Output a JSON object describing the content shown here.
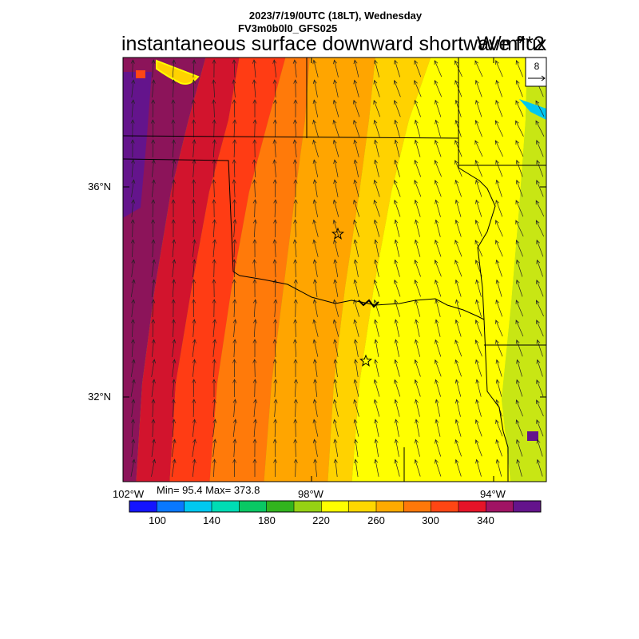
{
  "header": {
    "date_line": "2023/7/19/0UTC (18LT), Wednesday",
    "model_line": "FV3m0b0l0_GFS025",
    "title": "instantaneous surface downward shortwave flux",
    "units": "W/m**2"
  },
  "map": {
    "lat_labels": [
      "36°N",
      "32°N"
    ],
    "lon_labels": [
      "102°W",
      "98°W",
      "94°W"
    ],
    "vector_reference": "8",
    "stations": [
      "star-station",
      "star-station"
    ]
  },
  "stats": {
    "text": "Min= 95.4 Max= 373.8"
  },
  "colorbar": {
    "colors": [
      "#1414ff",
      "#0a78ff",
      "#00c8f0",
      "#00dcb4",
      "#0ac864",
      "#32b41e",
      "#96d214",
      "#ffff00",
      "#ffd700",
      "#ffaa00",
      "#ff780a",
      "#ff4614",
      "#e61428",
      "#a01464",
      "#64148c"
    ],
    "labels": [
      "100",
      "140",
      "180",
      "220",
      "260",
      "300",
      "340"
    ]
  },
  "field_colors": {
    "dark_purple": "#64148c",
    "plum": "#8c145a",
    "crimson": "#d2142d",
    "red_orange": "#ff3c14",
    "orange": "#ff7a0a",
    "amber": "#ffa500",
    "gold": "#ffd200",
    "yellow": "#ffff00",
    "yellow_green": "#c8e614",
    "green": "#82d21e"
  }
}
